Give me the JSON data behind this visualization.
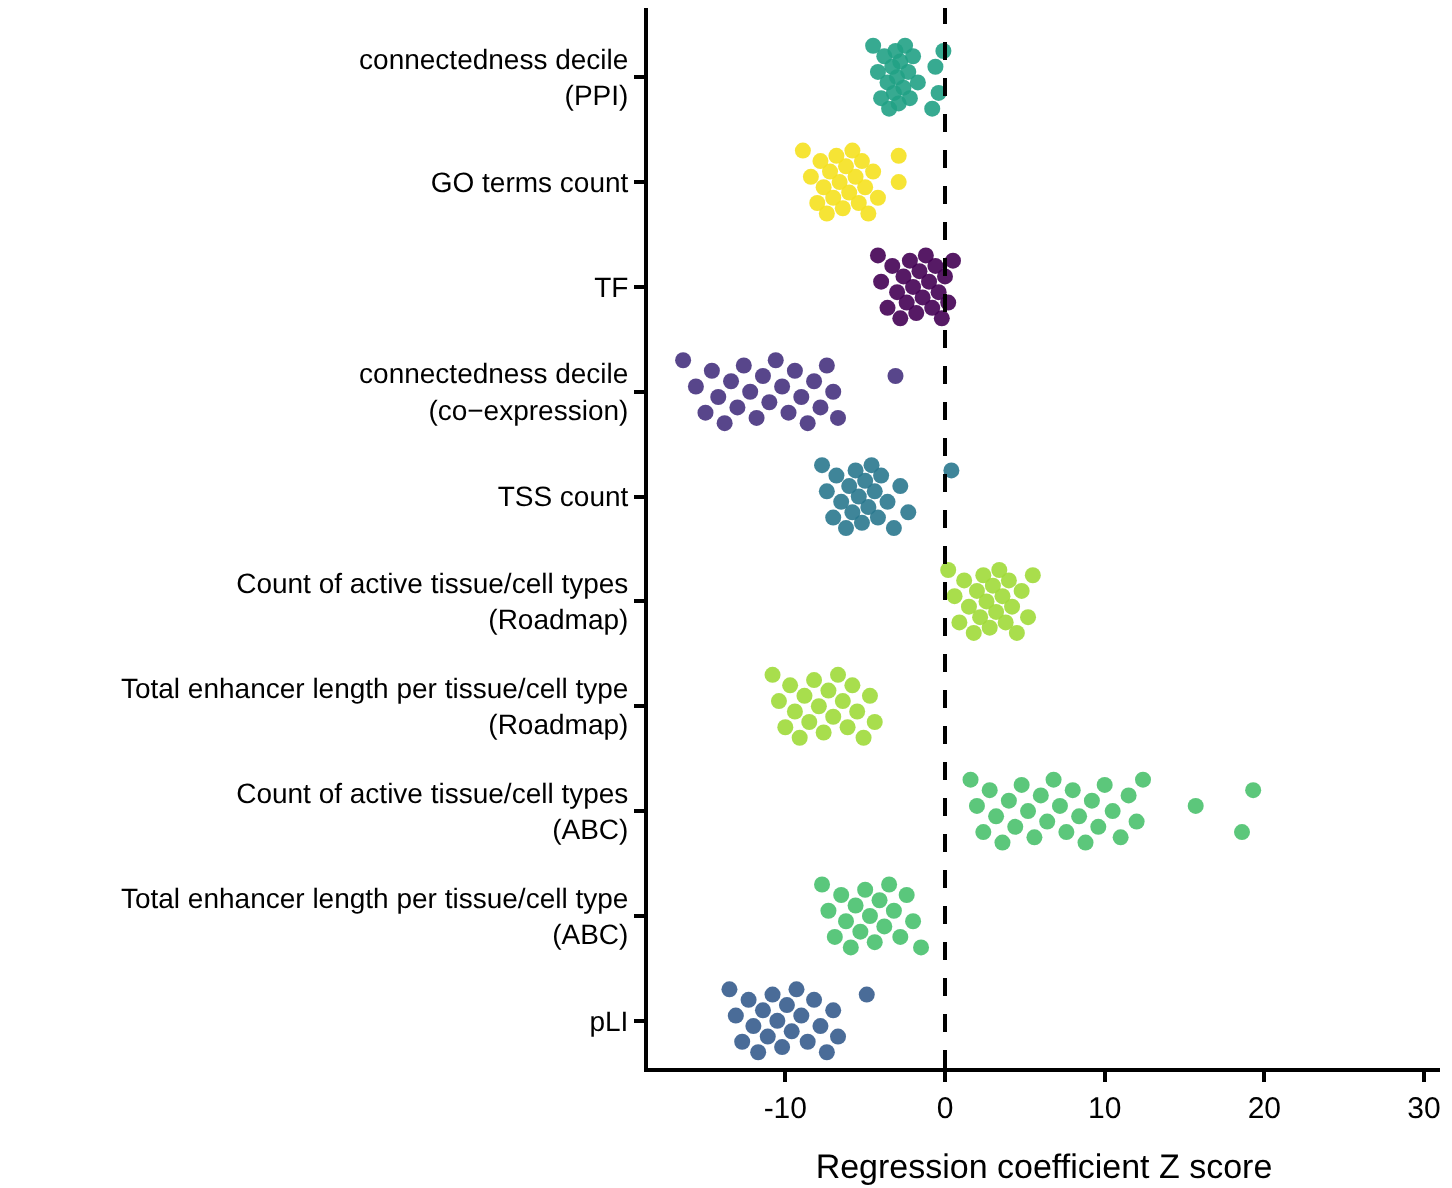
{
  "chart_data": {
    "type": "scatter",
    "orientation": "horizontal",
    "xlabel": "Regression coefficient Z score",
    "xlim": [
      -18.6,
      31
    ],
    "xticks": [
      -10,
      0,
      10,
      20,
      30
    ],
    "marker": "circle",
    "categories": [
      "connectedness decile\n(PPI)",
      "GO terms count",
      "TF",
      "connectedness decile\n(co−expression)",
      "TSS count",
      "Count of active tissue/cell types\n(Roadmap)",
      "Total enhancer length per tissue/cell type\n(Roadmap)",
      "Count of active tissue/cell types\n(ABC)",
      "Total enhancer length per tissue/cell type\n(ABC)",
      "pLI"
    ],
    "ref_lines": [
      {
        "axis": "x",
        "value": 0,
        "color": "#000000",
        "line_style": "dashed"
      }
    ],
    "series": [
      {
        "color": "#21a185",
        "x": [
          "connectedness decile\n(PPI)",
          "connectedness decile\n(PPI)",
          "connectedness decile\n(PPI)",
          "connectedness decile\n(PPI)",
          "connectedness decile\n(PPI)",
          "connectedness decile\n(PPI)",
          "connectedness decile\n(PPI)",
          "connectedness decile\n(PPI)",
          "connectedness decile\n(PPI)",
          "connectedness decile\n(PPI)",
          "connectedness decile\n(PPI)",
          "connectedness decile\n(PPI)",
          "connectedness decile\n(PPI)",
          "connectedness decile\n(PPI)",
          "connectedness decile\n(PPI)",
          "connectedness decile\n(PPI)",
          "connectedness decile\n(PPI)",
          "connectedness decile\n(PPI)",
          "connectedness decile\n(PPI)",
          "connectedness decile\n(PPI)",
          "connectedness decile\n(PPI)",
          "connectedness decile\n(PPI)"
        ],
        "values": [
          -4.5,
          -4.2,
          -4.0,
          -3.8,
          -3.6,
          -3.5,
          -3.3,
          -3.2,
          -3.1,
          -3.0,
          -2.9,
          -2.8,
          -2.6,
          -2.5,
          -2.3,
          -2.2,
          -2.0,
          -1.7,
          -0.8,
          -0.6,
          -0.4,
          -0.1
        ]
      },
      {
        "color": "#f5e11f",
        "x": [
          "GO terms count",
          "GO terms count",
          "GO terms count",
          "GO terms count",
          "GO terms count",
          "GO terms count",
          "GO terms count",
          "GO terms count",
          "GO terms count",
          "GO terms count",
          "GO terms count",
          "GO terms count",
          "GO terms count",
          "GO terms count",
          "GO terms count",
          "GO terms count",
          "GO terms count",
          "GO terms count",
          "GO terms count",
          "GO terms count",
          "GO terms count",
          "GO terms count",
          "GO terms count"
        ],
        "values": [
          -8.9,
          -8.4,
          -8.0,
          -7.8,
          -7.6,
          -7.4,
          -7.2,
          -7.0,
          -6.8,
          -6.6,
          -6.4,
          -6.2,
          -6.0,
          -5.8,
          -5.6,
          -5.4,
          -5.2,
          -5.0,
          -4.8,
          -4.5,
          -4.2,
          -2.9,
          -2.9
        ]
      },
      {
        "color": "#440154",
        "x": [
          "TF",
          "TF",
          "TF",
          "TF",
          "TF",
          "TF",
          "TF",
          "TF",
          "TF",
          "TF",
          "TF",
          "TF",
          "TF",
          "TF",
          "TF",
          "TF",
          "TF",
          "TF",
          "TF",
          "TF",
          "TF",
          "TF"
        ],
        "values": [
          -4.2,
          -4.0,
          -3.6,
          -3.3,
          -3.0,
          -2.8,
          -2.6,
          -2.4,
          -2.2,
          -2.0,
          -1.8,
          -1.6,
          -1.4,
          -1.2,
          -1.0,
          -0.8,
          -0.6,
          -0.4,
          -0.2,
          0.0,
          0.2,
          0.5
        ]
      },
      {
        "color": "#46327e",
        "x": [
          "connectedness decile\n(co−expression)",
          "connectedness decile\n(co−expression)",
          "connectedness decile\n(co−expression)",
          "connectedness decile\n(co−expression)",
          "connectedness decile\n(co−expression)",
          "connectedness decile\n(co−expression)",
          "connectedness decile\n(co−expression)",
          "connectedness decile\n(co−expression)",
          "connectedness decile\n(co−expression)",
          "connectedness decile\n(co−expression)",
          "connectedness decile\n(co−expression)",
          "connectedness decile\n(co−expression)",
          "connectedness decile\n(co−expression)",
          "connectedness decile\n(co−expression)",
          "connectedness decile\n(co−expression)",
          "connectedness decile\n(co−expression)",
          "connectedness decile\n(co−expression)",
          "connectedness decile\n(co−expression)",
          "connectedness decile\n(co−expression)",
          "connectedness decile\n(co−expression)",
          "connectedness decile\n(co−expression)",
          "connectedness decile\n(co−expression)",
          "connectedness decile\n(co−expression)",
          "connectedness decile\n(co−expression)",
          "connectedness decile\n(co−expression)"
        ],
        "values": [
          -16.4,
          -15.6,
          -15.0,
          -14.6,
          -14.2,
          -13.8,
          -13.4,
          -13.0,
          -12.6,
          -12.2,
          -11.8,
          -11.4,
          -11.0,
          -10.6,
          -10.2,
          -9.8,
          -9.4,
          -9.0,
          -8.6,
          -8.2,
          -7.8,
          -7.4,
          -7.0,
          -6.7,
          -3.1
        ]
      },
      {
        "color": "#2a788e",
        "x": [
          "TSS count",
          "TSS count",
          "TSS count",
          "TSS count",
          "TSS count",
          "TSS count",
          "TSS count",
          "TSS count",
          "TSS count",
          "TSS count",
          "TSS count",
          "TSS count",
          "TSS count",
          "TSS count",
          "TSS count",
          "TSS count",
          "TSS count",
          "TSS count",
          "TSS count",
          "TSS count",
          "TSS count",
          "TSS count"
        ],
        "values": [
          -7.7,
          -7.4,
          -7.0,
          -6.8,
          -6.5,
          -6.2,
          -6.0,
          -5.8,
          -5.6,
          -5.4,
          -5.2,
          -5.0,
          -4.8,
          -4.6,
          -4.4,
          -4.2,
          -4.0,
          -3.6,
          -3.2,
          -2.8,
          -2.3,
          0.4
        ]
      },
      {
        "color": "#a0da39",
        "x": [
          "Count of active tissue/cell types\n(Roadmap)",
          "Count of active tissue/cell types\n(Roadmap)",
          "Count of active tissue/cell types\n(Roadmap)",
          "Count of active tissue/cell types\n(Roadmap)",
          "Count of active tissue/cell types\n(Roadmap)",
          "Count of active tissue/cell types\n(Roadmap)",
          "Count of active tissue/cell types\n(Roadmap)",
          "Count of active tissue/cell types\n(Roadmap)",
          "Count of active tissue/cell types\n(Roadmap)",
          "Count of active tissue/cell types\n(Roadmap)",
          "Count of active tissue/cell types\n(Roadmap)",
          "Count of active tissue/cell types\n(Roadmap)",
          "Count of active tissue/cell types\n(Roadmap)",
          "Count of active tissue/cell types\n(Roadmap)",
          "Count of active tissue/cell types\n(Roadmap)",
          "Count of active tissue/cell types\n(Roadmap)",
          "Count of active tissue/cell types\n(Roadmap)",
          "Count of active tissue/cell types\n(Roadmap)",
          "Count of active tissue/cell types\n(Roadmap)",
          "Count of active tissue/cell types\n(Roadmap)",
          "Count of active tissue/cell types\n(Roadmap)",
          "Count of active tissue/cell types\n(Roadmap)"
        ],
        "values": [
          0.2,
          0.6,
          0.9,
          1.2,
          1.5,
          1.8,
          2.0,
          2.2,
          2.4,
          2.6,
          2.8,
          3.0,
          3.2,
          3.4,
          3.6,
          3.8,
          4.0,
          4.2,
          4.5,
          4.8,
          5.2,
          5.5
        ]
      },
      {
        "color": "#9fda3a",
        "x": [
          "Total enhancer length per tissue/cell type\n(Roadmap)",
          "Total enhancer length per tissue/cell type\n(Roadmap)",
          "Total enhancer length per tissue/cell type\n(Roadmap)",
          "Total enhancer length per tissue/cell type\n(Roadmap)",
          "Total enhancer length per tissue/cell type\n(Roadmap)",
          "Total enhancer length per tissue/cell type\n(Roadmap)",
          "Total enhancer length per tissue/cell type\n(Roadmap)",
          "Total enhancer length per tissue/cell type\n(Roadmap)",
          "Total enhancer length per tissue/cell type\n(Roadmap)",
          "Total enhancer length per tissue/cell type\n(Roadmap)",
          "Total enhancer length per tissue/cell type\n(Roadmap)",
          "Total enhancer length per tissue/cell type\n(Roadmap)",
          "Total enhancer length per tissue/cell type\n(Roadmap)",
          "Total enhancer length per tissue/cell type\n(Roadmap)",
          "Total enhancer length per tissue/cell type\n(Roadmap)",
          "Total enhancer length per tissue/cell type\n(Roadmap)",
          "Total enhancer length per tissue/cell type\n(Roadmap)",
          "Total enhancer length per tissue/cell type\n(Roadmap)",
          "Total enhancer length per tissue/cell type\n(Roadmap)",
          "Total enhancer length per tissue/cell type\n(Roadmap)",
          "Total enhancer length per tissue/cell type\n(Roadmap)"
        ],
        "values": [
          -10.8,
          -10.4,
          -10.0,
          -9.7,
          -9.4,
          -9.1,
          -8.8,
          -8.5,
          -8.2,
          -7.9,
          -7.6,
          -7.3,
          -7.0,
          -6.7,
          -6.4,
          -6.1,
          -5.8,
          -5.5,
          -5.1,
          -4.7,
          -4.4
        ]
      },
      {
        "color": "#4ac16d",
        "x": [
          "Count of active tissue/cell types\n(ABC)",
          "Count of active tissue/cell types\n(ABC)",
          "Count of active tissue/cell types\n(ABC)",
          "Count of active tissue/cell types\n(ABC)",
          "Count of active tissue/cell types\n(ABC)",
          "Count of active tissue/cell types\n(ABC)",
          "Count of active tissue/cell types\n(ABC)",
          "Count of active tissue/cell types\n(ABC)",
          "Count of active tissue/cell types\n(ABC)",
          "Count of active tissue/cell types\n(ABC)",
          "Count of active tissue/cell types\n(ABC)",
          "Count of active tissue/cell types\n(ABC)",
          "Count of active tissue/cell types\n(ABC)",
          "Count of active tissue/cell types\n(ABC)",
          "Count of active tissue/cell types\n(ABC)",
          "Count of active tissue/cell types\n(ABC)",
          "Count of active tissue/cell types\n(ABC)",
          "Count of active tissue/cell types\n(ABC)",
          "Count of active tissue/cell types\n(ABC)",
          "Count of active tissue/cell types\n(ABC)",
          "Count of active tissue/cell types\n(ABC)",
          "Count of active tissue/cell types\n(ABC)",
          "Count of active tissue/cell types\n(ABC)",
          "Count of active tissue/cell types\n(ABC)",
          "Count of active tissue/cell types\n(ABC)",
          "Count of active tissue/cell types\n(ABC)",
          "Count of active tissue/cell types\n(ABC)",
          "Count of active tissue/cell types\n(ABC)",
          "Count of active tissue/cell types\n(ABC)",
          "Count of active tissue/cell types\n(ABC)"
        ],
        "values": [
          1.6,
          2.0,
          2.4,
          2.8,
          3.2,
          3.6,
          4.0,
          4.4,
          4.8,
          5.2,
          5.6,
          6.0,
          6.4,
          6.8,
          7.2,
          7.6,
          8.0,
          8.4,
          8.8,
          9.2,
          9.6,
          10.0,
          10.5,
          11.0,
          11.5,
          12.0,
          12.4,
          15.7,
          18.6,
          19.3
        ]
      },
      {
        "color": "#48c16e",
        "x": [
          "Total enhancer length per tissue/cell type\n(ABC)",
          "Total enhancer length per tissue/cell type\n(ABC)",
          "Total enhancer length per tissue/cell type\n(ABC)",
          "Total enhancer length per tissue/cell type\n(ABC)",
          "Total enhancer length per tissue/cell type\n(ABC)",
          "Total enhancer length per tissue/cell type\n(ABC)",
          "Total enhancer length per tissue/cell type\n(ABC)",
          "Total enhancer length per tissue/cell type\n(ABC)",
          "Total enhancer length per tissue/cell type\n(ABC)",
          "Total enhancer length per tissue/cell type\n(ABC)",
          "Total enhancer length per tissue/cell type\n(ABC)",
          "Total enhancer length per tissue/cell type\n(ABC)",
          "Total enhancer length per tissue/cell type\n(ABC)",
          "Total enhancer length per tissue/cell type\n(ABC)",
          "Total enhancer length per tissue/cell type\n(ABC)",
          "Total enhancer length per tissue/cell type\n(ABC)",
          "Total enhancer length per tissue/cell type\n(ABC)",
          "Total enhancer length per tissue/cell type\n(ABC)",
          "Total enhancer length per tissue/cell type\n(ABC)"
        ],
        "values": [
          -7.7,
          -7.3,
          -6.9,
          -6.5,
          -6.2,
          -5.9,
          -5.6,
          -5.3,
          -5.0,
          -4.7,
          -4.4,
          -4.1,
          -3.8,
          -3.5,
          -3.2,
          -2.8,
          -2.4,
          -2.0,
          -1.5
        ]
      },
      {
        "color": "#365c8d",
        "x": [
          "pLI",
          "pLI",
          "pLI",
          "pLI",
          "pLI",
          "pLI",
          "pLI",
          "pLI",
          "pLI",
          "pLI",
          "pLI",
          "pLI",
          "pLI",
          "pLI",
          "pLI",
          "pLI",
          "pLI",
          "pLI",
          "pLI",
          "pLI",
          "pLI",
          "pLI"
        ],
        "values": [
          -13.5,
          -13.1,
          -12.7,
          -12.3,
          -12.0,
          -11.7,
          -11.4,
          -11.1,
          -10.8,
          -10.5,
          -10.2,
          -9.9,
          -9.6,
          -9.3,
          -9.0,
          -8.6,
          -8.2,
          -7.8,
          -7.4,
          -7.0,
          -6.7,
          -4.9
        ]
      }
    ]
  }
}
